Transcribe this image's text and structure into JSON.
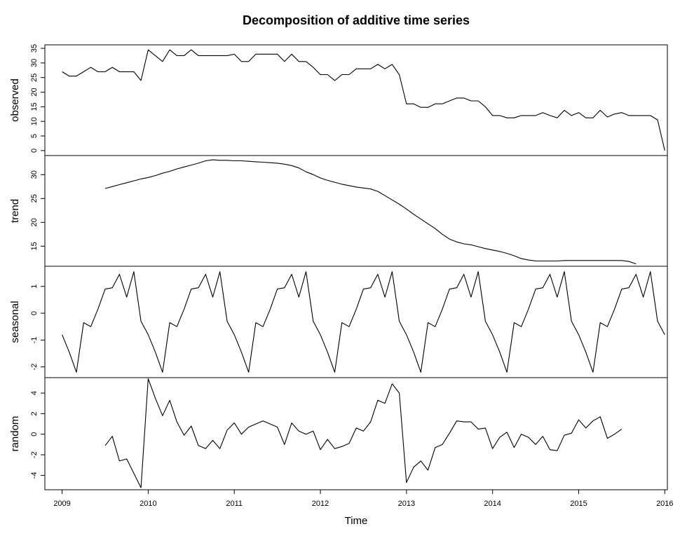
{
  "chart_data": {
    "type": "line",
    "title": "Decomposition of additive time series",
    "xlabel": "Time",
    "x_ticks": [
      "2009",
      "2010",
      "2011",
      "2012",
      "2013",
      "2014",
      "2015",
      "2016"
    ],
    "xlim": [
      2008.8,
      2016.03
    ],
    "x_start": 2009,
    "x_step": 0.08333,
    "panels": [
      {
        "name": "observed",
        "ylabel": "observed",
        "ylim": [
          -1.7,
          36.2
        ],
        "y_ticks": [
          0,
          5,
          10,
          15,
          20,
          25,
          30,
          35
        ],
        "offset": 0,
        "values": [
          27,
          25.5,
          25.5,
          27,
          28.5,
          27,
          27,
          28.5,
          27,
          27,
          27,
          24,
          34.5,
          32.5,
          30.5,
          34.5,
          32.5,
          32.5,
          34.5,
          32.5,
          32.5,
          32.5,
          32.5,
          32.5,
          33,
          30.5,
          30.5,
          33,
          33,
          33,
          33,
          30.5,
          33,
          30.5,
          30.5,
          28.5,
          26,
          26,
          24,
          26,
          26,
          28,
          28,
          28,
          29.5,
          28,
          29.5,
          26,
          16,
          16,
          14.8,
          14.8,
          16,
          16,
          17,
          18,
          18,
          17,
          17,
          15,
          12,
          12,
          11.2,
          11.2,
          12,
          12,
          12,
          13,
          12,
          11.2,
          13.8,
          12,
          13,
          11.2,
          11.2,
          13.8,
          11.5,
          12.5,
          13,
          12,
          12,
          12,
          12,
          10.5,
          0
        ]
      },
      {
        "name": "trend",
        "ylabel": "trend",
        "ylim": [
          10.8,
          34.0
        ],
        "y_ticks": [
          15,
          20,
          25,
          30
        ],
        "offset": 6,
        "values": [
          27.1,
          27.5,
          27.9,
          28.3,
          28.7,
          29.1,
          29.4,
          29.8,
          30.3,
          30.7,
          31.2,
          31.6,
          32.0,
          32.4,
          32.9,
          33.1,
          33.0,
          33.0,
          32.9,
          32.9,
          32.8,
          32.7,
          32.6,
          32.5,
          32.4,
          32.2,
          31.9,
          31.4,
          30.6,
          30.0,
          29.3,
          28.8,
          28.4,
          28.0,
          27.7,
          27.4,
          27.2,
          27.0,
          26.5,
          25.6,
          24.7,
          23.8,
          22.8,
          21.7,
          20.7,
          19.7,
          18.7,
          17.5,
          16.5,
          15.9,
          15.5,
          15.3,
          14.9,
          14.5,
          14.2,
          13.9,
          13.5,
          13.0,
          12.4,
          12.1,
          11.9,
          11.9,
          11.9,
          11.9,
          12.0,
          12.0,
          12.0,
          12.0,
          12.0,
          12.0,
          12.0,
          12.0,
          12.0,
          11.8,
          11.3
        ]
      },
      {
        "name": "seasonal",
        "ylabel": "seasonal",
        "ylim": [
          -2.4,
          1.75
        ],
        "y_ticks": [
          -2,
          -1,
          0,
          1
        ],
        "offset": 0,
        "values": [
          -0.8,
          -1.45,
          -2.2,
          -0.35,
          -0.5,
          0.15,
          0.9,
          0.95,
          1.45,
          0.6,
          1.55,
          -0.3,
          -0.8,
          -1.45,
          -2.2,
          -0.35,
          -0.5,
          0.15,
          0.9,
          0.95,
          1.45,
          0.6,
          1.55,
          -0.3,
          -0.8,
          -1.45,
          -2.2,
          -0.35,
          -0.5,
          0.15,
          0.9,
          0.95,
          1.45,
          0.6,
          1.55,
          -0.3,
          -0.8,
          -1.45,
          -2.2,
          -0.35,
          -0.5,
          0.15,
          0.9,
          0.95,
          1.45,
          0.6,
          1.55,
          -0.3,
          -0.8,
          -1.45,
          -2.2,
          -0.35,
          -0.5,
          0.15,
          0.9,
          0.95,
          1.45,
          0.6,
          1.55,
          -0.3,
          -0.8,
          -1.45,
          -2.2,
          -0.35,
          -0.5,
          0.15,
          0.9,
          0.95,
          1.45,
          0.6,
          1.55,
          -0.3,
          -0.8,
          -1.45,
          -2.2,
          -0.35,
          -0.5,
          0.15,
          0.9,
          0.95,
          1.45,
          0.6,
          1.55,
          -0.3,
          -0.8
        ]
      },
      {
        "name": "random",
        "ylabel": "random",
        "ylim": [
          -5.4,
          5.5
        ],
        "y_ticks": [
          -4,
          -2,
          0,
          2,
          4
        ],
        "offset": 6,
        "values": [
          -1.1,
          -0.2,
          -2.6,
          -2.4,
          -3.8,
          -5.2,
          5.4,
          3.5,
          1.8,
          3.3,
          1.2,
          -0.1,
          0.8,
          -1.1,
          -1.4,
          -0.6,
          -1.4,
          0.4,
          1.1,
          0,
          0.7,
          1,
          1.3,
          1,
          0.7,
          -1,
          1.1,
          0.3,
          0,
          0.3,
          -1.5,
          -0.5,
          -1.4,
          -1.2,
          -0.9,
          0.6,
          0.3,
          1.2,
          3.3,
          3,
          4.9,
          4,
          -4.7,
          -3.2,
          -2.6,
          -3.5,
          -1.3,
          -1,
          0.1,
          1.3,
          1.2,
          1.2,
          0.5,
          0.6,
          -1.4,
          -0.3,
          0.2,
          -1.3,
          0,
          -0.3,
          -1,
          -0.2,
          -1.5,
          -1.6,
          -0.1,
          0.1,
          1.4,
          0.6,
          1.3,
          1.7,
          -0.4,
          0,
          0.5
        ]
      }
    ]
  }
}
